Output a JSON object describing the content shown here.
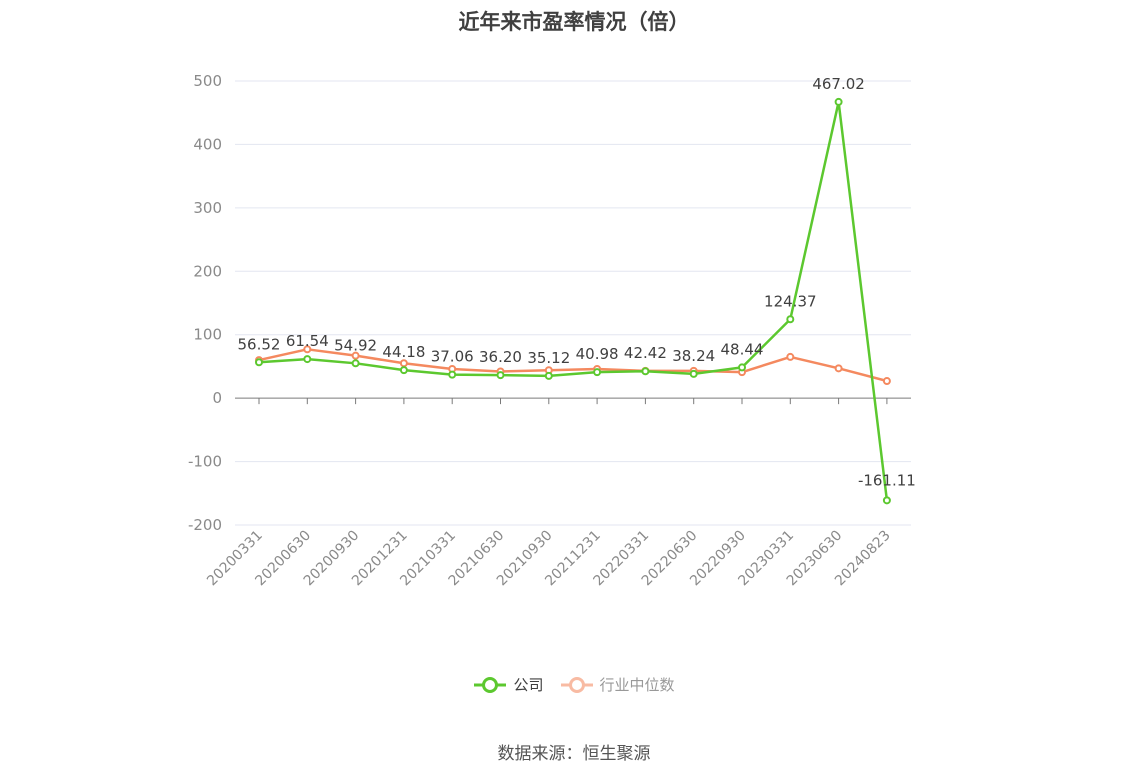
{
  "chart_data": {
    "type": "line",
    "title": "近年来市盈率情况（倍）",
    "categories": [
      "20200331",
      "20200630",
      "20200930",
      "20201231",
      "20210331",
      "20210630",
      "20210930",
      "20211231",
      "20220331",
      "20220630",
      "20220930",
      "20230331",
      "20230630",
      "20240823"
    ],
    "ylim": [
      -200,
      500
    ],
    "yticks": [
      -200,
      -100,
      0,
      100,
      200,
      300,
      400,
      500
    ],
    "grid": true,
    "legend_position": "bottom-center",
    "series": [
      {
        "name": "公司",
        "color": "#5cc82f",
        "values": [
          56.52,
          61.54,
          54.92,
          44.18,
          37.06,
          36.2,
          35.12,
          40.98,
          42.42,
          38.24,
          48.44,
          124.37,
          467.02,
          -161.11
        ],
        "labels": [
          "56.52",
          "61.54",
          "54.92",
          "44.18",
          "37.06",
          "36.20",
          "35.12",
          "40.98",
          "42.42",
          "38.24",
          "48.44",
          "124.37",
          "467.02",
          "-161.11"
        ]
      },
      {
        "name": "行业中位数",
        "color": "#f4895f",
        "values": [
          60,
          77,
          67,
          55,
          46,
          42,
          44,
          46,
          43,
          43,
          41,
          65,
          47,
          27
        ]
      }
    ]
  },
  "source_text": "数据来源：恒生聚源"
}
